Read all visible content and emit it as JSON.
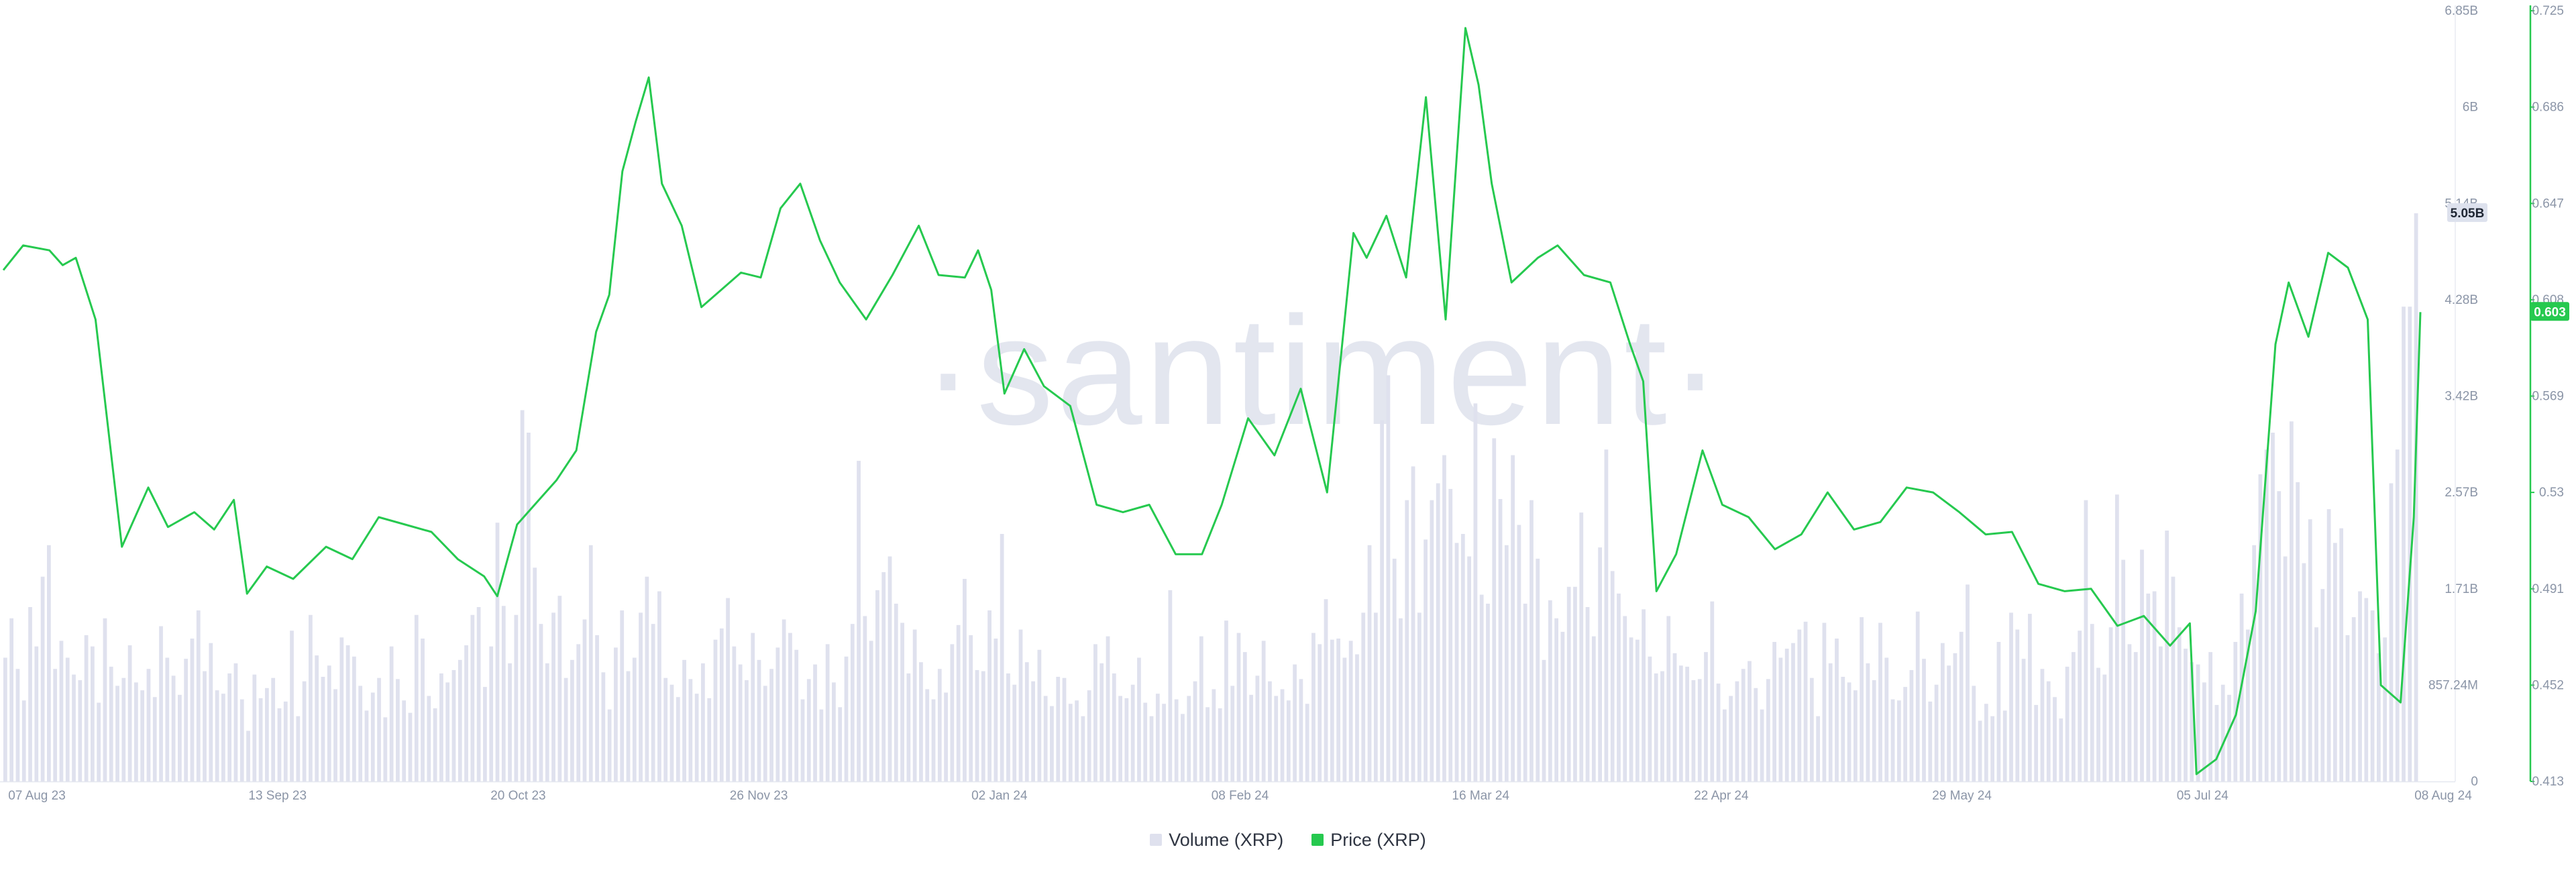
{
  "watermark": "·santiment·",
  "legend": [
    {
      "label": "Volume (XRP)",
      "color": "#dfe1ee"
    },
    {
      "label": "Price (XRP)",
      "color": "#26c94f"
    }
  ],
  "chart_data": {
    "type": "line",
    "x_tick_labels": [
      "07 Aug 23",
      "13 Sep 23",
      "20 Oct 23",
      "26 Nov 23",
      "02 Jan 24",
      "08 Feb 24",
      "16 Mar 24",
      "22 Apr 24",
      "29 May 24",
      "05 Jul 24",
      "08 Aug 24"
    ],
    "y_left_tick_labels": [
      "0",
      "857.24M",
      "1.71B",
      "2.57B",
      "3.42B",
      "4.28B",
      "5.14B",
      "6B",
      "6.85B"
    ],
    "y_left_range": [
      0,
      6.85
    ],
    "y_left_unit": "B",
    "y_right_tick_labels": [
      "0.413",
      "0.452",
      "0.491",
      "0.53",
      "0.569",
      "0.608",
      "0.647",
      "0.686",
      "0.725"
    ],
    "y_right_range": [
      0.413,
      0.725
    ],
    "current_volume_label": "5.05B",
    "current_price_label": "0.603",
    "grid": false,
    "legend_position": "bottom-center",
    "series": [
      {
        "name": "Price (XRP)",
        "axis": "right",
        "color": "#26c94f",
        "x": [
          "2023-08-07",
          "2023-08-10",
          "2023-08-14",
          "2023-08-16",
          "2023-08-18",
          "2023-08-21",
          "2023-08-25",
          "2023-08-29",
          "2023-09-01",
          "2023-09-05",
          "2023-09-08",
          "2023-09-11",
          "2023-09-13",
          "2023-09-16",
          "2023-09-20",
          "2023-09-25",
          "2023-09-29",
          "2023-10-03",
          "2023-10-07",
          "2023-10-11",
          "2023-10-15",
          "2023-10-19",
          "2023-10-21",
          "2023-10-24",
          "2023-10-27",
          "2023-10-30",
          "2023-11-02",
          "2023-11-05",
          "2023-11-07",
          "2023-11-09",
          "2023-11-11",
          "2023-11-13",
          "2023-11-15",
          "2023-11-18",
          "2023-11-21",
          "2023-11-24",
          "2023-11-27",
          "2023-11-30",
          "2023-12-03",
          "2023-12-06",
          "2023-12-09",
          "2023-12-12",
          "2023-12-16",
          "2023-12-20",
          "2023-12-24",
          "2023-12-27",
          "2023-12-31",
          "2024-01-02",
          "2024-01-04",
          "2024-01-06",
          "2024-01-09",
          "2024-01-12",
          "2024-01-16",
          "2024-01-20",
          "2024-01-24",
          "2024-01-28",
          "2024-02-01",
          "2024-02-05",
          "2024-02-08",
          "2024-02-12",
          "2024-02-16",
          "2024-02-20",
          "2024-02-24",
          "2024-02-28",
          "2024-03-01",
          "2024-03-04",
          "2024-03-07",
          "2024-03-10",
          "2024-03-13",
          "2024-03-16",
          "2024-03-18",
          "2024-03-20",
          "2024-03-23",
          "2024-03-27",
          "2024-03-30",
          "2024-04-03",
          "2024-04-07",
          "2024-04-10",
          "2024-04-12",
          "2024-04-14",
          "2024-04-17",
          "2024-04-21",
          "2024-04-24",
          "2024-04-28",
          "2024-05-02",
          "2024-05-06",
          "2024-05-10",
          "2024-05-14",
          "2024-05-18",
          "2024-05-22",
          "2024-05-26",
          "2024-05-30",
          "2024-06-03",
          "2024-06-07",
          "2024-06-11",
          "2024-06-15",
          "2024-06-19",
          "2024-06-23",
          "2024-06-27",
          "2024-07-01",
          "2024-07-04",
          "2024-07-05",
          "2024-07-08",
          "2024-07-11",
          "2024-07-14",
          "2024-07-17",
          "2024-07-19",
          "2024-07-22",
          "2024-07-25",
          "2024-07-28",
          "2024-07-31",
          "2024-08-02",
          "2024-08-05",
          "2024-08-07",
          "2024-08-08"
        ],
        "values": [
          0.62,
          0.63,
          0.628,
          0.622,
          0.625,
          0.6,
          0.508,
          0.532,
          0.516,
          0.522,
          0.515,
          0.527,
          0.489,
          0.5,
          0.495,
          0.508,
          0.503,
          0.52,
          0.517,
          0.514,
          0.503,
          0.496,
          0.488,
          0.517,
          0.526,
          0.535,
          0.547,
          0.595,
          0.61,
          0.66,
          0.68,
          0.698,
          0.655,
          0.638,
          0.605,
          0.612,
          0.619,
          0.617,
          0.645,
          0.655,
          0.632,
          0.615,
          0.6,
          0.618,
          0.638,
          0.618,
          0.617,
          0.628,
          0.612,
          0.57,
          0.588,
          0.573,
          0.565,
          0.525,
          0.522,
          0.525,
          0.505,
          0.505,
          0.525,
          0.56,
          0.545,
          0.572,
          0.53,
          0.635,
          0.625,
          0.642,
          0.617,
          0.69,
          0.6,
          0.718,
          0.695,
          0.655,
          0.615,
          0.625,
          0.63,
          0.618,
          0.615,
          0.59,
          0.575,
          0.49,
          0.505,
          0.547,
          0.525,
          0.52,
          0.507,
          0.513,
          0.53,
          0.515,
          0.518,
          0.532,
          0.53,
          0.522,
          0.513,
          0.514,
          0.493,
          0.49,
          0.491,
          0.476,
          0.48,
          0.468,
          0.477,
          0.416,
          0.422,
          0.44,
          0.482,
          0.59,
          0.615,
          0.593,
          0.627,
          0.621,
          0.6,
          0.452,
          0.445,
          0.52,
          0.603
        ]
      },
      {
        "name": "Volume (XRP)",
        "axis": "left",
        "color": "#dfe1ee",
        "values_billions": [
          1.1,
          1.45,
          1.0,
          0.72,
          1.55,
          1.2,
          1.82,
          2.1,
          1.0,
          1.25,
          1.1,
          0.95,
          0.9,
          1.3,
          1.2,
          0.7,
          1.45,
          1.02,
          0.85,
          0.92,
          1.21,
          0.88,
          0.81,
          1.0,
          0.75,
          1.38,
          1.1,
          0.94,
          0.77,
          1.09,
          1.27,
          1.52,
          0.98,
          1.23,
          0.81,
          0.78,
          0.96,
          1.05,
          0.73,
          0.45,
          0.95,
          0.74,
          0.83,
          0.92,
          0.65,
          0.71,
          1.34,
          0.58,
          0.89,
          1.48,
          1.12,
          0.93,
          1.03,
          0.82,
          1.28,
          1.21,
          1.11,
          0.85,
          0.63,
          0.79,
          0.92,
          0.57,
          1.2,
          0.91,
          0.72,
          0.61,
          1.48,
          1.27,
          0.76,
          0.65,
          0.96,
          0.88,
          0.99,
          1.08,
          1.21,
          1.48,
          1.55,
          0.84,
          1.2,
          2.3,
          1.56,
          1.05,
          1.48,
          3.3,
          3.1,
          1.9,
          1.4,
          1.05,
          1.5,
          1.65,
          0.92,
          1.08,
          1.22,
          1.44,
          2.1,
          1.3,
          0.97,
          0.64,
          1.19,
          1.52,
          0.98,
          1.1,
          1.5,
          1.82,
          1.4,
          1.69,
          0.92,
          0.86,
          0.75,
          1.08,
          0.91,
          0.78,
          1.05,
          0.74,
          1.26,
          1.36,
          1.63,
          1.2,
          1.04,
          0.9,
          1.32,
          1.08,
          0.85,
          1.0,
          1.19,
          1.44,
          1.32,
          1.17,
          0.73,
          0.91,
          1.04,
          0.64,
          1.22,
          0.88,
          0.66,
          1.11,
          1.4,
          2.85,
          1.47,
          1.25,
          1.7,
          1.86,
          2.0,
          1.58,
          1.41,
          0.96,
          1.35,
          1.06,
          0.82,
          0.73,
          1.0,
          0.79,
          1.22,
          1.39,
          1.8,
          1.3,
          0.99,
          0.98,
          1.52,
          1.27,
          2.2,
          0.96,
          0.86,
          1.35,
          1.06,
          0.89,
          1.17,
          0.76,
          0.67,
          0.93,
          0.92,
          0.69,
          0.72,
          0.58,
          0.81,
          1.22,
          1.05,
          1.29,
          0.96,
          0.76,
          0.74,
          0.86,
          1.1,
          0.7,
          0.58,
          0.78,
          0.69,
          1.7,
          0.73,
          0.6,
          0.76,
          0.89,
          1.29,
          0.66,
          0.82,
          0.65,
          1.43,
          0.85,
          1.32,
          1.15,
          0.77,
          0.94,
          1.25,
          0.89,
          0.76,
          0.82,
          0.72,
          1.04,
          0.91,
          0.69,
          1.32,
          1.22,
          1.62,
          1.26,
          1.27,
          1.1,
          1.25,
          1.13,
          1.5,
          2.1,
          1.5,
          3.21,
          3.61,
          1.98,
          1.45,
          2.5,
          2.8,
          1.5,
          2.15,
          2.5,
          2.65,
          2.9,
          2.6,
          2.12,
          2.2,
          2.0,
          3.36,
          1.66,
          1.58,
          3.05,
          2.51,
          2.1,
          2.9,
          2.28,
          1.58,
          2.5,
          1.98,
          1.08,
          1.61,
          1.45,
          1.33,
          1.73,
          1.73,
          2.39,
          1.55,
          1.29,
          2.08,
          2.95,
          1.87,
          1.67,
          1.47,
          1.28,
          1.26,
          1.53,
          1.11,
          0.96,
          0.98,
          1.47,
          1.14,
          1.03,
          1.02,
          0.9,
          0.91,
          1.15,
          1.6,
          0.87,
          0.64,
          0.76,
          0.89,
          1.0,
          1.07,
          0.83,
          0.64,
          0.91,
          1.24,
          1.1,
          1.18,
          1.23,
          1.35,
          1.42,
          0.92,
          0.58,
          1.41,
          1.05,
          1.27,
          0.93,
          0.88,
          0.81,
          1.46,
          1.05,
          0.9,
          1.41,
          1.1,
          0.73,
          0.72,
          0.84,
          0.99,
          1.51,
          1.09,
          0.71,
          0.86,
          1.23,
          1.03,
          1.14,
          1.33,
          1.75,
          0.85,
          0.54,
          0.69,
          0.58,
          1.24,
          0.63,
          1.5,
          1.35,
          1.09,
          1.49,
          0.68,
          1.0,
          0.89,
          0.75,
          0.56,
          1.02,
          1.15,
          1.34,
          2.5,
          1.4,
          1.01,
          0.95,
          1.37,
          2.55,
          1.97,
          1.22,
          1.15,
          2.06,
          1.67,
          1.69,
          1.2,
          2.23,
          1.82,
          1.37,
          1.18,
          1.06,
          1.04,
          0.88,
          1.15,
          0.68,
          0.86,
          0.77,
          1.24,
          1.67,
          1.35,
          2.1,
          2.73,
          2.95,
          3.1,
          2.58,
          2.0,
          3.2,
          2.66,
          1.94,
          2.33,
          1.37,
          1.71,
          2.42,
          2.12,
          2.25,
          1.3,
          1.46,
          1.69,
          1.63,
          1.52,
          1.14,
          1.28,
          2.65,
          2.95,
          4.22,
          4.22,
          5.05
        ]
      }
    ]
  }
}
